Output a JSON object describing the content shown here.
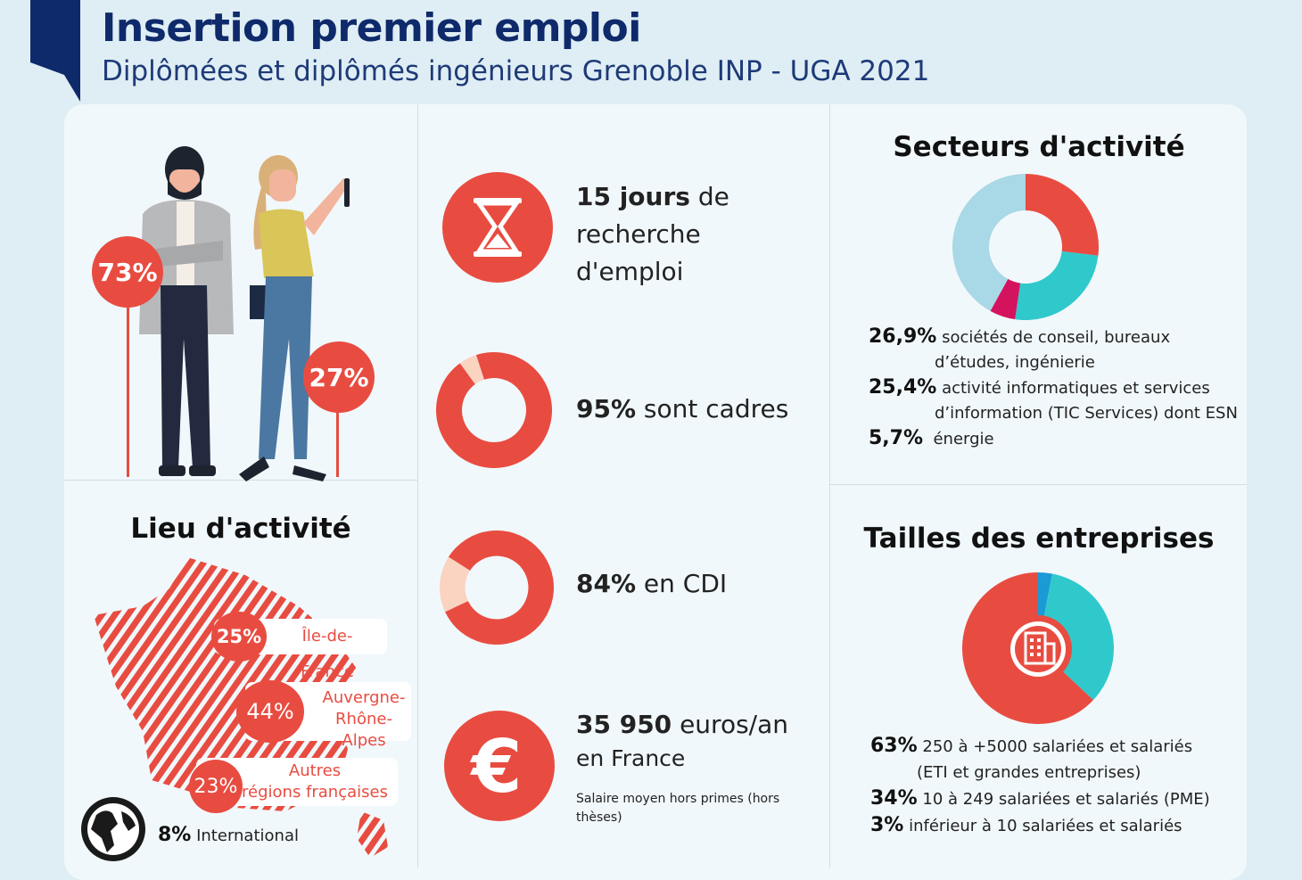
{
  "header": {
    "title": "Insertion premier emploi",
    "subtitle": "Diplômées et diplômés ingénieurs Grenoble INP - UGA 2021"
  },
  "gender": {
    "men_pct": "73%",
    "women_pct": "27%"
  },
  "lieu": {
    "title": "Lieu d'activité",
    "items": [
      {
        "pct": "25%",
        "label": "Île-de-France"
      },
      {
        "pct": "44%",
        "label_line1": "Auvergne-",
        "label_line2": "Rhône-Alpes"
      },
      {
        "pct": "23%",
        "label_line1": "Autres",
        "label_line2": "régions françaises"
      }
    ],
    "international": {
      "pct": "8%",
      "label": "International"
    }
  },
  "stats": {
    "search": {
      "bold": "15 jours",
      "line1_rest": " de",
      "line2": "recherche",
      "line3": "d'emploi"
    },
    "cadres": {
      "bold": "95%",
      "rest": " sont cadres",
      "value": 95
    },
    "cdi": {
      "bold": "84%",
      "rest": " en CDI",
      "value": 84
    },
    "salary": {
      "bold": "35 950",
      "rest": " euros/an",
      "line2": "en France",
      "note_line1": "Salaire moyen hors primes (hors",
      "note_line2": "thèses)"
    }
  },
  "secteurs": {
    "title": "Secteurs d'activité",
    "items": [
      {
        "pct": "26,9%",
        "line1": "sociétés de conseil, bureaux",
        "line2": "d’études, ingénierie"
      },
      {
        "pct": "25,4%",
        "line1": "activité informatiques et services",
        "line2": "d’information (TIC Services) dont ESN"
      },
      {
        "pct": "5,7%",
        "line1": "énergie"
      }
    ]
  },
  "tailles": {
    "title": "Tailles des entreprises",
    "items": [
      {
        "pct": "63%",
        "line1": "250 à +5000 salariées et salariés",
        "line2": "(ETI et grandes entreprises)"
      },
      {
        "pct": "34%",
        "line1": "10 à 249 salariées et salariés (PME)"
      },
      {
        "pct": "3%",
        "line1": "inférieur à 10 salariées et salariés"
      }
    ]
  },
  "chart_data": [
    {
      "type": "pie",
      "categories": [
        "sociétés de conseil, bureaux d’études, ingénierie",
        "activité informatiques et services d’information (TIC Services) dont ESN",
        "énergie"
      ],
      "values": [
        26.9,
        25.4,
        5.7
      ]
    },
    {
      "type": "pie",
      "categories": [
        "250 à +5000 salariées et salariés (ETI et grandes entreprises)",
        "10 à 249 salariées et salariés (PME)",
        "inférieur à 10 salariées et salariés"
      ],
      "values": [
        63,
        34,
        3
      ]
    }
  ],
  "colors": {
    "red": "#e84c41",
    "navy": "#0f2a6b",
    "teal": "#2fc9cc",
    "lightblue": "#a9d8e6",
    "magenta": "#d4135f",
    "blue": "#1a9bd6",
    "peach": "#fbd3c1"
  }
}
